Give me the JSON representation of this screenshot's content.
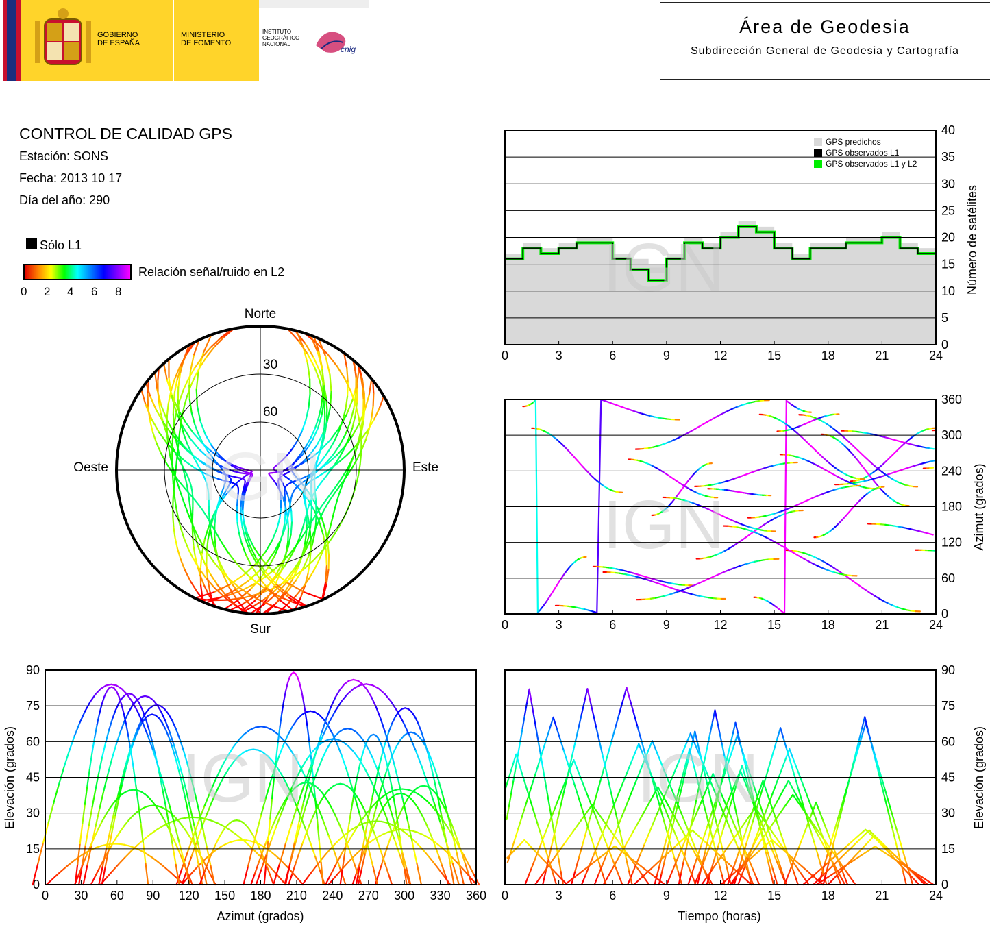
{
  "header": {
    "gobierno": [
      "GOBIERNO",
      "DE ESPAÑA"
    ],
    "ministerio": [
      "MINISTERIO",
      "DE FOMENTO"
    ],
    "instituto": [
      "INSTITUTO",
      "GEOGRÁFICO",
      "NACIONAL"
    ],
    "cnig": "cnig",
    "area_title": "Área de Geodesia",
    "area_subtitle": "Subdirección General de Geodesia y Cartografía"
  },
  "info": {
    "title": "CONTROL DE CALIDAD GPS",
    "station": "Estación: SONS",
    "date": "Fecha: 2013 10 17",
    "doy": "Día del año: 290",
    "solo_l1": "Sólo L1",
    "snr_label": "Relación señal/ruido en L2",
    "snr_ticks": [
      "0",
      "2",
      "4",
      "6",
      "8"
    ]
  },
  "colors": {
    "predicted": "#d9d9d9",
    "observed_l1": "#000000",
    "observed_l1l2": "#00ee00"
  },
  "watermark": "IGN",
  "chart_data": [
    {
      "type": "area",
      "id": "satellites",
      "xlim": [
        0,
        24
      ],
      "ylim": [
        0,
        40
      ],
      "xticks": [
        "0",
        "3",
        "6",
        "9",
        "12",
        "15",
        "18",
        "21",
        "24"
      ],
      "yticks": [
        "0",
        "5",
        "10",
        "15",
        "20",
        "25",
        "30",
        "35",
        "40"
      ],
      "ylabel": "Número de satélites",
      "legend": [
        "GPS predichos",
        "GPS observados L1",
        "GPS observados L1 y L2"
      ],
      "legend_position": "top-right",
      "x": [
        0,
        1,
        2,
        3,
        4,
        5,
        6,
        7,
        8,
        9,
        10,
        11,
        12,
        13,
        14,
        15,
        16,
        17,
        18,
        19,
        20,
        21,
        22,
        23,
        24
      ],
      "predicted": [
        17,
        19,
        18,
        19,
        20,
        20,
        17,
        16,
        15,
        17,
        20,
        19,
        21,
        23,
        22,
        19,
        17,
        19,
        19,
        20,
        20,
        21,
        19,
        18,
        17
      ],
      "observed": [
        16,
        18,
        17,
        18,
        19,
        19,
        16,
        14,
        12,
        16,
        19,
        18,
        20,
        22,
        21,
        18,
        16,
        18,
        18,
        19,
        19,
        20,
        18,
        17,
        16
      ]
    },
    {
      "type": "scatter",
      "id": "azimuth-time",
      "xlim": [
        0,
        24
      ],
      "ylim": [
        0,
        360
      ],
      "xticks": [
        "0",
        "3",
        "6",
        "9",
        "12",
        "15",
        "18",
        "21",
        "24"
      ],
      "yticks": [
        "0",
        "60",
        "120",
        "180",
        "240",
        "300",
        "360"
      ],
      "ylabel": "Azimut (grados)"
    },
    {
      "type": "scatter",
      "id": "elevation-azimuth",
      "xlim": [
        0,
        360
      ],
      "ylim": [
        0,
        90
      ],
      "xticks": [
        "0",
        "30",
        "60",
        "90",
        "120",
        "150",
        "180",
        "210",
        "240",
        "270",
        "300",
        "330",
        "360"
      ],
      "yticks": [
        "0",
        "15",
        "30",
        "45",
        "60",
        "75",
        "90"
      ],
      "xlabel": "Azimut (grados)",
      "ylabel": "Elevación (grados)"
    },
    {
      "type": "scatter",
      "id": "elevation-time",
      "xlim": [
        0,
        24
      ],
      "ylim": [
        0,
        90
      ],
      "xticks": [
        "0",
        "3",
        "6",
        "9",
        "12",
        "15",
        "18",
        "21",
        "24"
      ],
      "yticks": [
        "0",
        "15",
        "30",
        "45",
        "60",
        "75",
        "90"
      ],
      "xlabel": "Tiempo (horas)",
      "ylabel": "Elevación (grados)"
    },
    {
      "type": "scatter",
      "id": "skyplot",
      "directions": {
        "north": "Norte",
        "south": "Sur",
        "east": "Este",
        "west": "Oeste"
      },
      "rings": [
        "30",
        "60"
      ]
    }
  ]
}
